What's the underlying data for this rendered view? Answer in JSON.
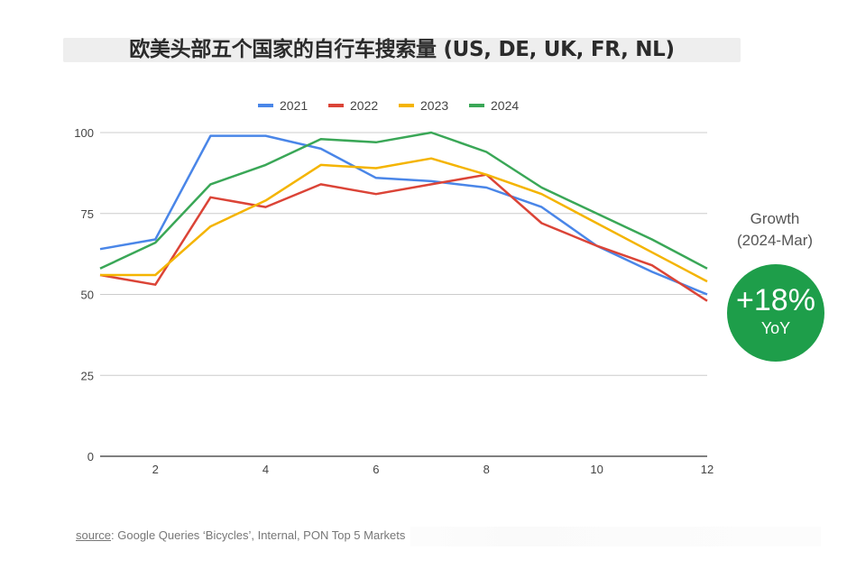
{
  "title": "欧美头部五个国家的自行车搜索量 (US, DE, UK, FR, NL)",
  "growth": {
    "label": "Growth",
    "period": "(2024-Mar)",
    "value": "+18%",
    "unit": "YoY",
    "color": "#1e9e4a"
  },
  "source": {
    "prefix": "source",
    "text": ": Google Queries ‘Bicycles’, Internal, PON Top 5 Markets"
  },
  "chart_data": {
    "type": "line",
    "x": [
      1,
      2,
      3,
      4,
      5,
      6,
      7,
      8,
      9,
      10,
      11,
      12
    ],
    "xticks": [
      2,
      4,
      6,
      8,
      10,
      12
    ],
    "yticks": [
      0,
      25,
      50,
      75,
      100
    ],
    "xlim": [
      1,
      12
    ],
    "ylim": [
      0,
      100
    ],
    "grid": true,
    "legend_position": "top",
    "series": [
      {
        "name": "2021",
        "color": "#4a86e8",
        "values": [
          64,
          67,
          99,
          99,
          95,
          86,
          85,
          83,
          77,
          65,
          57,
          50
        ]
      },
      {
        "name": "2022",
        "color": "#db4437",
        "values": [
          56,
          53,
          80,
          77,
          84,
          81,
          84,
          87,
          72,
          65,
          59,
          48
        ]
      },
      {
        "name": "2023",
        "color": "#f4b400",
        "values": [
          56,
          56,
          71,
          79,
          90,
          89,
          92,
          87,
          81,
          72,
          63,
          54
        ]
      },
      {
        "name": "2024",
        "color": "#3aa757",
        "values": [
          58,
          66,
          84,
          90,
          98,
          97,
          100,
          94,
          83,
          75,
          67,
          58
        ]
      }
    ]
  }
}
